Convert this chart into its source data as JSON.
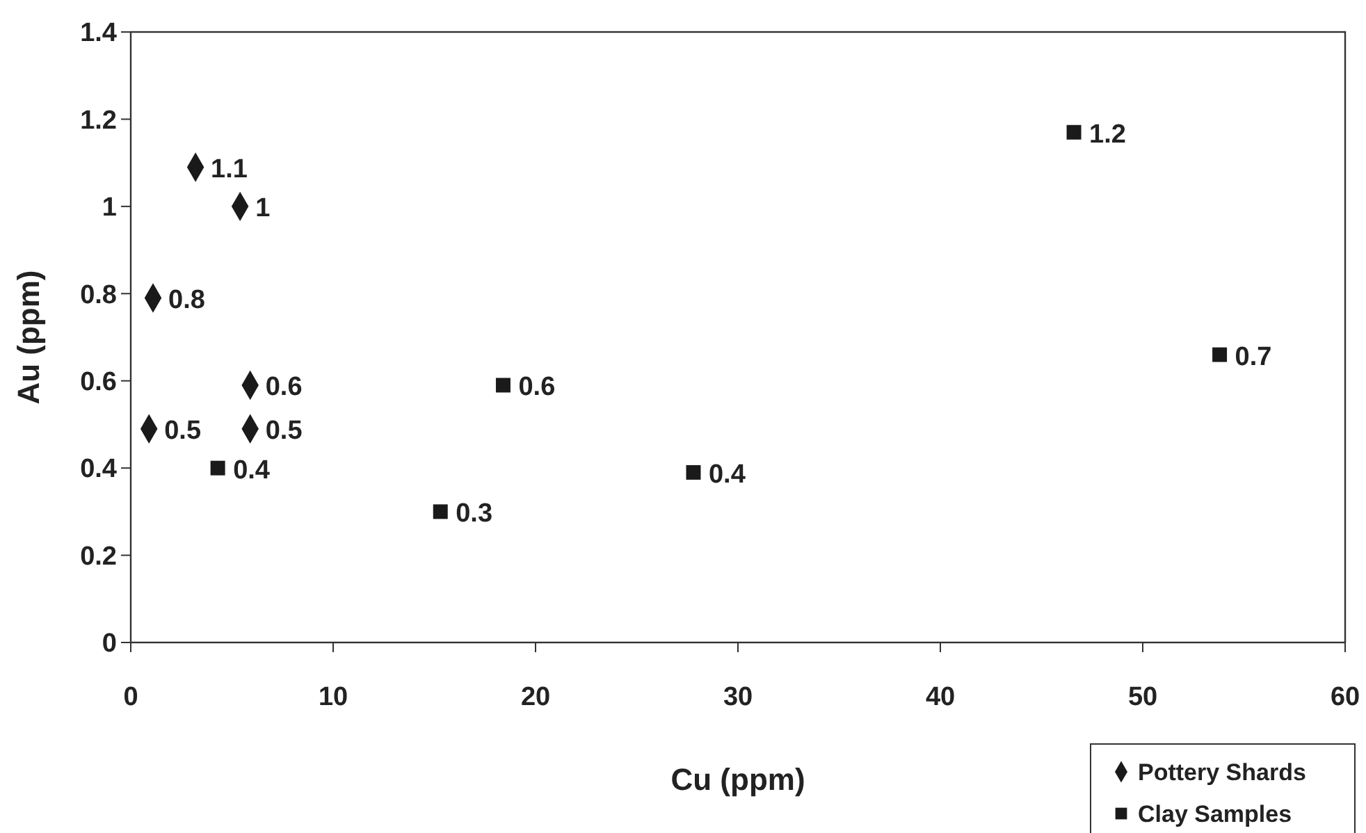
{
  "chart_data": {
    "type": "scatter",
    "xlabel": "Cu (ppm)",
    "ylabel": "Au (ppm)",
    "xlim": [
      0,
      60
    ],
    "xticks": [
      0,
      10,
      20,
      30,
      40,
      50,
      60
    ],
    "ylim": [
      0,
      1.4
    ],
    "yticks": [
      0,
      0.2,
      0.4,
      0.6,
      0.8,
      1,
      1.2,
      1.4
    ],
    "grid": false,
    "legend": "bottom right",
    "series": [
      {
        "name": "Pottery Shards",
        "color": "#1a1a1a",
        "marker": "diamond",
        "x": [
          1.1,
          0.9,
          3.2,
          5.4,
          5.9,
          5.9
        ],
        "values": [
          0.79,
          0.49,
          1.09,
          1.0,
          0.59,
          0.49
        ],
        "value_labels": [
          "0.8",
          "0.5",
          "1.1",
          "1",
          "0.6",
          "0.5"
        ]
      },
      {
        "name": "Clay Samples",
        "color": "#1a1a1a",
        "marker": "square",
        "x": [
          4.3,
          18.4,
          15.3,
          27.8,
          46.6,
          53.8
        ],
        "values": [
          0.4,
          0.59,
          0.3,
          0.39,
          1.17,
          0.66
        ],
        "value_labels": [
          "0.4",
          "0.6",
          "0.3",
          "0.4",
          "1.2",
          "0.7"
        ]
      }
    ]
  }
}
